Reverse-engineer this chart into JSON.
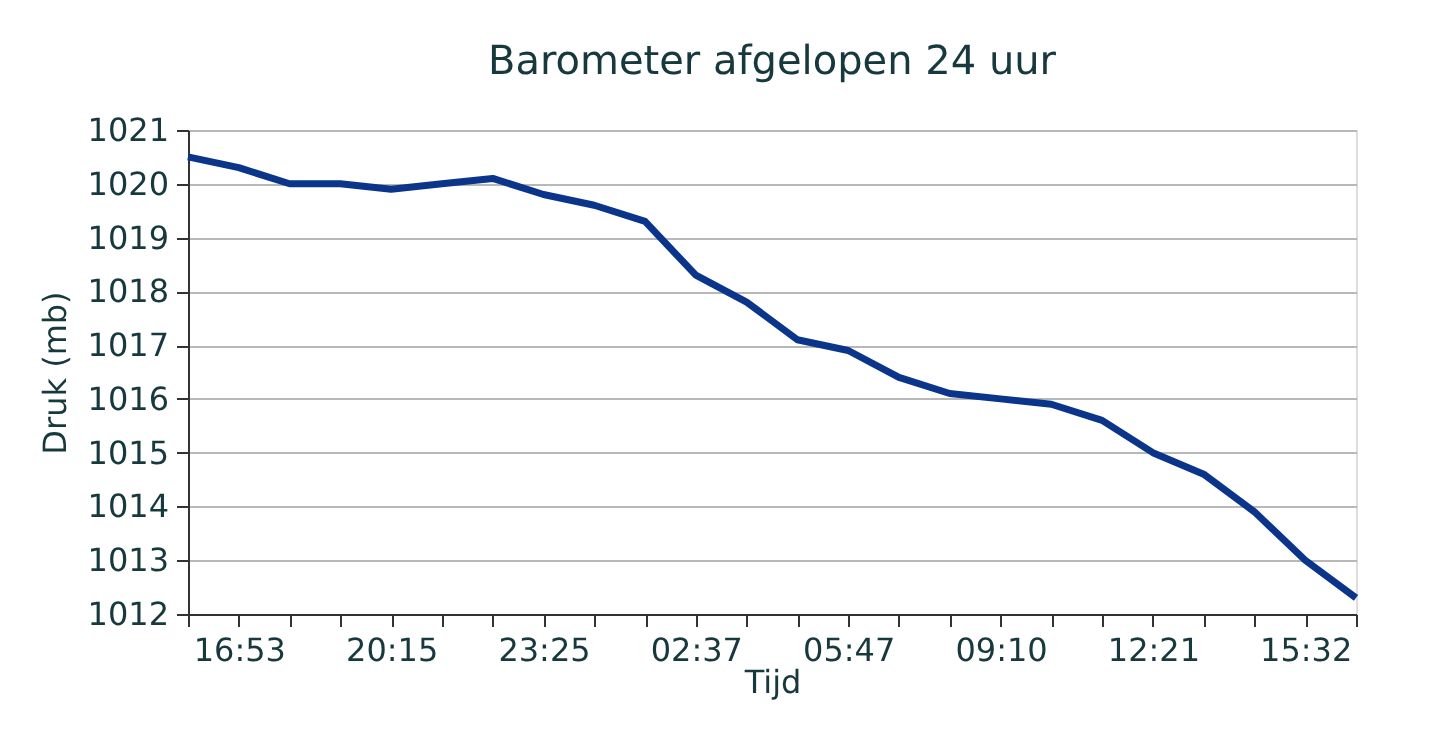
{
  "chart_data": {
    "type": "line",
    "title": "Barometer afgelopen 24 uur",
    "xlabel": "Tijd",
    "ylabel": "Druk (mb)",
    "categories": [
      null,
      "16:53",
      null,
      null,
      "20:15",
      null,
      null,
      "23:25",
      null,
      null,
      "02:37",
      null,
      null,
      "05:47",
      null,
      null,
      "09:10",
      null,
      null,
      "12:21",
      null,
      null,
      "15:32",
      null
    ],
    "series": [
      {
        "color": "#0b358a",
        "values": [
          1020.5,
          1020.3,
          1020.0,
          1020.0,
          1019.9,
          1020.0,
          1020.1,
          1019.8,
          1019.6,
          1019.3,
          1018.3,
          1017.8,
          1017.1,
          1016.9,
          1016.4,
          1016.1,
          1016.0,
          1015.9,
          1015.6,
          1015.0,
          1014.6,
          1013.9,
          1013.0,
          1012.3
        ]
      }
    ],
    "ylim": [
      1012,
      1021
    ],
    "yticks": [
      1012,
      1013,
      1014,
      1015,
      1016,
      1017,
      1018,
      1019,
      1020,
      1021
    ],
    "grid": "y",
    "marker": "none",
    "line_style": "solid"
  }
}
